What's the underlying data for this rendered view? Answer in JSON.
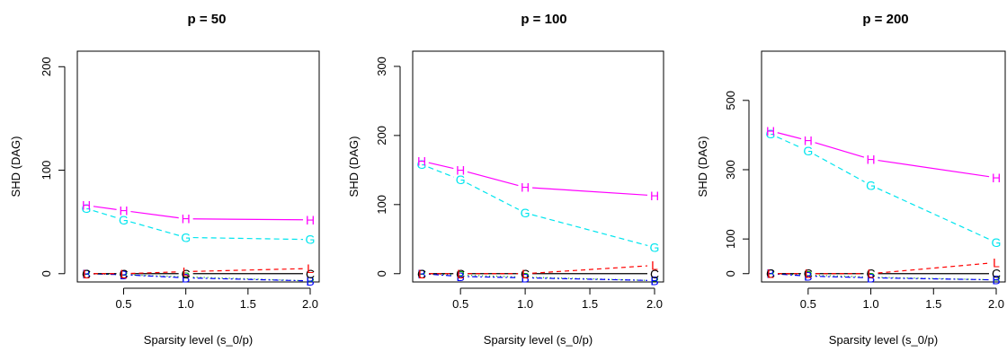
{
  "chart_data": [
    {
      "type": "line",
      "title": "p = 50",
      "xlabel": "Sparsity level (s_0/p)",
      "ylabel": "SHD (DAG)",
      "x": [
        0.2,
        0.5,
        1.0,
        2.0
      ],
      "xticks": [
        "0.5",
        "1.0",
        "1.5",
        "2.0"
      ],
      "xlim": [
        0.2,
        2.0
      ],
      "yticks": [
        "0",
        "100",
        "200"
      ],
      "ylim": [
        -8,
        215
      ],
      "series": [
        {
          "marker": "H",
          "color": "#ff00ff",
          "dash": "none",
          "values": [
            66,
            61,
            53,
            52
          ]
        },
        {
          "marker": "G",
          "color": "#00e5ee",
          "dash": "6 4",
          "values": [
            63,
            52,
            35,
            33
          ]
        },
        {
          "marker": "L",
          "color": "#ff0000",
          "dash": "5 4",
          "values": [
            0,
            0,
            2,
            5
          ]
        },
        {
          "marker": "C",
          "color": "#000000",
          "dash": "none",
          "values": [
            0,
            0,
            0,
            0
          ]
        },
        {
          "marker": "B",
          "color": "#0000ff",
          "dash": "2 3 6 3",
          "values": [
            0,
            -1,
            -4,
            -7
          ]
        },
        {
          "marker": "P",
          "color": "#00aa00",
          "dash": "1 3",
          "values": [
            0,
            -1,
            -3,
            -7
          ]
        }
      ]
    },
    {
      "type": "line",
      "title": "p = 100",
      "xlabel": "Sparsity level (s_0/p)",
      "ylabel": "SHD (DAG)",
      "x": [
        0.2,
        0.5,
        1.0,
        2.0
      ],
      "xticks": [
        "0.5",
        "1.0",
        "1.5",
        "2.0"
      ],
      "xlim": [
        0.2,
        2.0
      ],
      "yticks": [
        "0",
        "100",
        "200",
        "300"
      ],
      "ylim": [
        -12,
        322
      ],
      "series": [
        {
          "marker": "H",
          "color": "#ff00ff",
          "dash": "none",
          "values": [
            163,
            150,
            125,
            113
          ]
        },
        {
          "marker": "G",
          "color": "#00e5ee",
          "dash": "6 4",
          "values": [
            158,
            136,
            88,
            38
          ]
        },
        {
          "marker": "L",
          "color": "#ff0000",
          "dash": "5 4",
          "values": [
            0,
            0,
            0,
            12
          ]
        },
        {
          "marker": "C",
          "color": "#000000",
          "dash": "none",
          "values": [
            0,
            0,
            0,
            0
          ]
        },
        {
          "marker": "B",
          "color": "#0000ff",
          "dash": "2 3 6 3",
          "values": [
            0,
            -4,
            -6,
            -10
          ]
        },
        {
          "marker": "P",
          "color": "#00aa00",
          "dash": "1 3",
          "values": [
            0,
            -2,
            -5,
            -10
          ]
        }
      ]
    },
    {
      "type": "line",
      "title": "p = 200",
      "xlabel": "Sparsity level (s_0/p)",
      "ylabel": "SHD (DAG)",
      "x": [
        0.2,
        0.5,
        1.0,
        2.0
      ],
      "xticks": [
        "0.5",
        "1.0",
        "1.5",
        "2.0"
      ],
      "xlim": [
        0.2,
        2.0
      ],
      "yticks": [
        "0",
        "100",
        "300",
        "500"
      ],
      "ytick_values": [
        0,
        100,
        300,
        500
      ],
      "ylim": [
        -24,
        642
      ],
      "series": [
        {
          "marker": "H",
          "color": "#ff00ff",
          "dash": "none",
          "values": [
            412,
            384,
            330,
            277
          ]
        },
        {
          "marker": "G",
          "color": "#00e5ee",
          "dash": "6 4",
          "values": [
            403,
            354,
            255,
            90
          ]
        },
        {
          "marker": "L",
          "color": "#ff0000",
          "dash": "5 4",
          "values": [
            0,
            0,
            0,
            32
          ]
        },
        {
          "marker": "C",
          "color": "#000000",
          "dash": "none",
          "values": [
            0,
            0,
            0,
            0
          ]
        },
        {
          "marker": "B",
          "color": "#0000ff",
          "dash": "2 3 6 3",
          "values": [
            0,
            -7,
            -12,
            -18
          ]
        },
        {
          "marker": "P",
          "color": "#00aa00",
          "dash": "1 3",
          "values": [
            0,
            -4,
            -10,
            -18
          ]
        }
      ]
    }
  ]
}
